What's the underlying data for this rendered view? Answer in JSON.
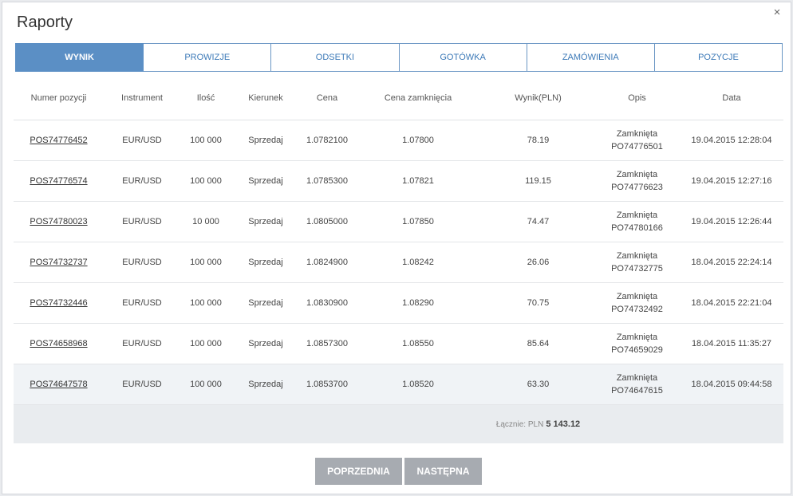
{
  "modal": {
    "title": "Raporty",
    "close_icon": "×"
  },
  "tabs": [
    {
      "label": "WYNIK",
      "active": true
    },
    {
      "label": "PROWIZJE",
      "active": false
    },
    {
      "label": "ODSETKI",
      "active": false
    },
    {
      "label": "GOTÓWKA",
      "active": false
    },
    {
      "label": "ZAMÓWIENIA",
      "active": false
    },
    {
      "label": "POZYCJE",
      "active": false
    }
  ],
  "table": {
    "headers": [
      "Numer pozycji",
      "Instrument",
      "Ilość",
      "Kierunek",
      "Cena",
      "Cena zamknięcia",
      "Wynik(PLN)",
      "Opis",
      "Data"
    ],
    "rows": [
      {
        "pos": "POS74776452",
        "instrument": "EUR/USD",
        "qty": "100 000",
        "dir": "Sprzedaj",
        "price": "1.0782100",
        "close": "1.07800",
        "result": "78.19",
        "desc1": "Zamknięta",
        "desc2": "PO74776501",
        "date": "19.04.2015 12:28:04"
      },
      {
        "pos": "POS74776574",
        "instrument": "EUR/USD",
        "qty": "100 000",
        "dir": "Sprzedaj",
        "price": "1.0785300",
        "close": "1.07821",
        "result": "119.15",
        "desc1": "Zamknięta",
        "desc2": "PO74776623",
        "date": "19.04.2015 12:27:16"
      },
      {
        "pos": "POS74780023",
        "instrument": "EUR/USD",
        "qty": "10 000",
        "dir": "Sprzedaj",
        "price": "1.0805000",
        "close": "1.07850",
        "result": "74.47",
        "desc1": "Zamknięta",
        "desc2": "PO74780166",
        "date": "19.04.2015 12:26:44"
      },
      {
        "pos": "POS74732737",
        "instrument": "EUR/USD",
        "qty": "100 000",
        "dir": "Sprzedaj",
        "price": "1.0824900",
        "close": "1.08242",
        "result": "26.06",
        "desc1": "Zamknięta",
        "desc2": "PO74732775",
        "date": "18.04.2015 22:24:14"
      },
      {
        "pos": "POS74732446",
        "instrument": "EUR/USD",
        "qty": "100 000",
        "dir": "Sprzedaj",
        "price": "1.0830900",
        "close": "1.08290",
        "result": "70.75",
        "desc1": "Zamknięta",
        "desc2": "PO74732492",
        "date": "18.04.2015 22:21:04"
      },
      {
        "pos": "POS74658968",
        "instrument": "EUR/USD",
        "qty": "100 000",
        "dir": "Sprzedaj",
        "price": "1.0857300",
        "close": "1.08550",
        "result": "85.64",
        "desc1": "Zamknięta",
        "desc2": "PO74659029",
        "date": "18.04.2015 11:35:27"
      },
      {
        "pos": "POS74647578",
        "instrument": "EUR/USD",
        "qty": "100 000",
        "dir": "Sprzedaj",
        "price": "1.0853700",
        "close": "1.08520",
        "result": "63.30",
        "desc1": "Zamknięta",
        "desc2": "PO74647615",
        "date": "18.04.2015 09:44:58"
      }
    ],
    "total_label": "Łącznie: PLN",
    "total_value": "5 143.12"
  },
  "pagination": {
    "prev_label": "POPRZEDNIA",
    "next_label": "NASTĘPNA"
  }
}
